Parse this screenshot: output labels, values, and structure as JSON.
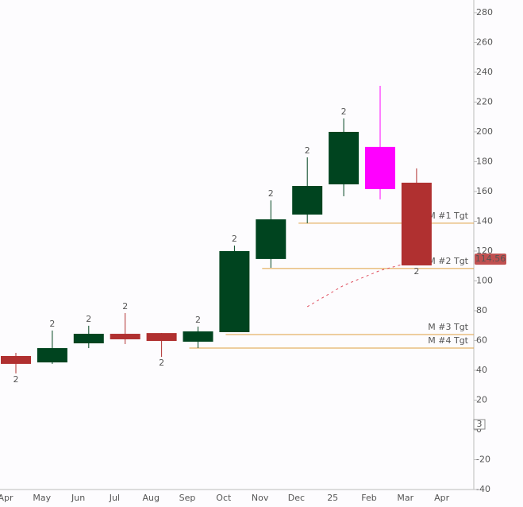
{
  "chart_data": {
    "type": "candlestick",
    "x_labels": [
      "Apr",
      "May",
      "Jun",
      "Jul",
      "Aug",
      "Sep",
      "Oct",
      "Nov",
      "Dec",
      "25",
      "Feb",
      "Mar",
      "Apr"
    ],
    "open": [
      49.6,
      45.3,
      58.1,
      64.5,
      65.0,
      59.2,
      65.6,
      114.7,
      144.5,
      164.8,
      189.9,
      165.9
    ],
    "high": [
      51.7,
      66.7,
      69.9,
      78.4,
      65.0,
      69.3,
      123.7,
      154.0,
      182.9,
      209.0,
      230.9,
      175.5
    ],
    "low": [
      37.9,
      44.3,
      54.9,
      57.6,
      49.0,
      54.9,
      65.6,
      108.8,
      138.7,
      156.8,
      154.7,
      110.4
    ],
    "close": [
      44.3,
      54.9,
      64.5,
      60.8,
      59.7,
      66.1,
      120.0,
      141.3,
      163.7,
      200.0,
      161.6,
      110.4
    ],
    "colors": [
      "#b03030",
      "#00441f",
      "#00441f",
      "#b03030",
      "#b03030",
      "#00441f",
      "#00441f",
      "#00441f",
      "#00441f",
      "#00441f",
      "#ff00ff",
      "#b03030"
    ],
    "signal_labels": [
      "2",
      "2",
      "2",
      "2",
      "2",
      "2",
      "2",
      "2",
      "2",
      "2",
      null,
      "2"
    ],
    "signal_positions": [
      "below",
      "above",
      "above",
      "above",
      "below",
      "above",
      "above",
      "above",
      "above",
      "above",
      null,
      "below"
    ],
    "targets": [
      {
        "label": "M #1 Tgt",
        "value": 138.7,
        "from": 8
      },
      {
        "label": "M #2 Tgt",
        "value": 108.3,
        "from": 7
      },
      {
        "label": "M #3 Tgt",
        "value": 64.0,
        "from": 6
      },
      {
        "label": "M #4 Tgt",
        "value": 54.9,
        "from": 5
      }
    ],
    "target_color": "#e0a040",
    "projection": {
      "x": [
        8,
        9,
        10,
        11
      ],
      "values": [
        82.7,
        97.0,
        107.0,
        113.6
      ],
      "color": "#e05060"
    },
    "last_price": 114.56,
    "badge": "3",
    "ylim": [
      -40,
      288.5
    ],
    "yticks": [
      -40,
      -20,
      0,
      20,
      40,
      60,
      80,
      100,
      120,
      140,
      160,
      180,
      200,
      220,
      240,
      260,
      280
    ]
  }
}
